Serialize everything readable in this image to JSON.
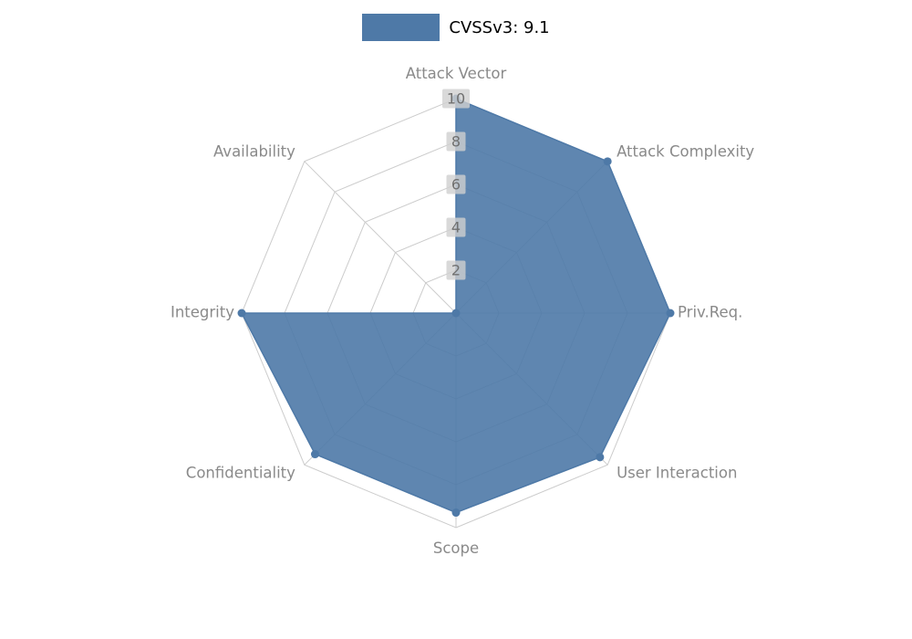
{
  "legend": {
    "label": "CVSSv3: 9.1",
    "swatch_color": "#4e79a7"
  },
  "chart_data": {
    "type": "radar",
    "categories": [
      "Attack Vector",
      "Attack Complexity",
      "Priv.Req.",
      "User Interaction",
      "Scope",
      "Confidentiality",
      "Integrity",
      "Availability"
    ],
    "series": [
      {
        "name": "CVSSv3: 9.1",
        "values": [
          10,
          10,
          10,
          9.5,
          9.3,
          9.3,
          10,
          0
        ]
      }
    ],
    "rlim": [
      0,
      10
    ],
    "ticks": [
      2,
      4,
      6,
      8,
      10
    ],
    "grid": true,
    "legend_position": "top-center",
    "fill_color": "#4e79a7",
    "fill_opacity": 0.9,
    "stroke_color": "#4e79a7",
    "grid_color": "#cccccc",
    "axis_label_color": "#8a8a8a",
    "tick_label_color": "#707070",
    "tick_label_bg": "#cfcfcf"
  }
}
